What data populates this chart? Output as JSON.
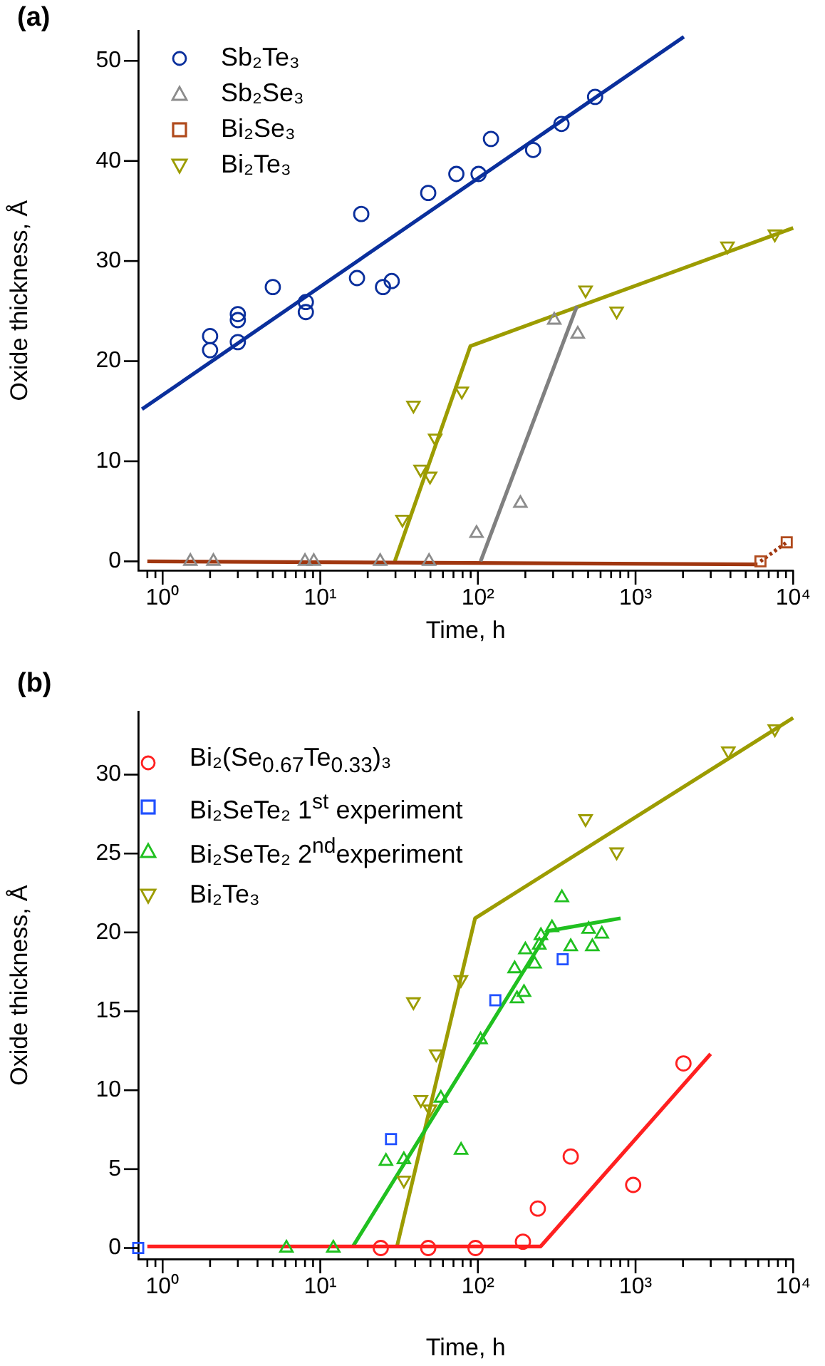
{
  "chart_data": [
    {
      "type": "scatter",
      "title": "(a)",
      "xlabel": "Time, h",
      "ylabel": "Oxide thickness, Å",
      "log": "x",
      "legend": "top left",
      "grid": false,
      "xlim": [
        0.7,
        10000
      ],
      "ylim": [
        -0.9,
        53
      ],
      "xticks": [
        {
          "value": 0.8,
          "label": null
        },
        {
          "value": 0.9,
          "label": null
        },
        {
          "value": 1,
          "label": "10⁰"
        },
        {
          "value": 2,
          "label": null
        },
        {
          "value": 3,
          "label": null
        },
        {
          "value": 4,
          "label": null
        },
        {
          "value": 5,
          "label": null
        },
        {
          "value": 6,
          "label": null
        },
        {
          "value": 7,
          "label": null
        },
        {
          "value": 8,
          "label": null
        },
        {
          "value": 9,
          "label": null
        },
        {
          "value": 10,
          "label": "10¹"
        },
        {
          "value": 20,
          "label": null
        },
        {
          "value": 30,
          "label": null
        },
        {
          "value": 40,
          "label": null
        },
        {
          "value": 50,
          "label": null
        },
        {
          "value": 60,
          "label": null
        },
        {
          "value": 70,
          "label": null
        },
        {
          "value": 80,
          "label": null
        },
        {
          "value": 90,
          "label": null
        },
        {
          "value": 100,
          "label": "10²"
        },
        {
          "value": 200,
          "label": null
        },
        {
          "value": 300,
          "label": null
        },
        {
          "value": 400,
          "label": null
        },
        {
          "value": 500,
          "label": null
        },
        {
          "value": 600,
          "label": null
        },
        {
          "value": 700,
          "label": null
        },
        {
          "value": 800,
          "label": null
        },
        {
          "value": 900,
          "label": null
        },
        {
          "value": 1000,
          "label": "10³"
        },
        {
          "value": 2000,
          "label": null
        },
        {
          "value": 3000,
          "label": null
        },
        {
          "value": 4000,
          "label": null
        },
        {
          "value": 5000,
          "label": null
        },
        {
          "value": 6000,
          "label": null
        },
        {
          "value": 7000,
          "label": null
        },
        {
          "value": 8000,
          "label": null
        },
        {
          "value": 9000,
          "label": null
        },
        {
          "value": 10000,
          "label": "10⁴"
        }
      ],
      "yticks": [
        0,
        10,
        20,
        30,
        40,
        50
      ],
      "series": [
        {
          "name": "Sb₂Te₃",
          "color": "#0a2f9c",
          "marker": "circle",
          "x": [
            2,
            2,
            3,
            3,
            3,
            5,
            8.1,
            8.1,
            17.1,
            18.2,
            25,
            28.4,
            48.4,
            73,
            101,
            121,
            224,
            339,
            554
          ],
          "values": [
            22.5,
            21.1,
            24.7,
            24.1,
            21.9,
            27.4,
            25.9,
            24.9,
            28.3,
            34.7,
            27.4,
            28.0,
            36.8,
            38.7,
            38.7,
            42.2,
            41.1,
            43.7,
            46.4
          ]
        },
        {
          "name": "Sb₂Se₃",
          "color": "#8c8c8c",
          "marker": "triangle",
          "x": [
            1.5,
            2.1,
            8,
            9.1,
            24,
            49,
            98,
            186,
            305,
            430
          ],
          "values": [
            0,
            0,
            0,
            0,
            0,
            0,
            2.8,
            5.8,
            24.1,
            22.7
          ]
        },
        {
          "name": "Bi₂Se₃",
          "color": "#b04a1c",
          "marker": "square",
          "x": [
            6200,
            9100
          ],
          "values": [
            0,
            1.9
          ]
        },
        {
          "name": "Bi₂Te₃",
          "color": "#9c9c00",
          "marker": "triangle-down",
          "x": [
            33.2,
            39,
            43.3,
            49.7,
            53.6,
            79,
            482,
            759,
            3830,
            7650
          ],
          "values": [
            4.2,
            15.6,
            9.2,
            8.5,
            12.3,
            17.0,
            27.1,
            25.0,
            31.5,
            32.7
          ]
        },
        {
          "type": "line",
          "color": "#0a2f9c",
          "x": [
            0.74,
            2025
          ],
          "values": [
            15.2,
            52.4
          ]
        },
        {
          "type": "line",
          "color": "#808080",
          "x": [
            104,
            425
          ],
          "values": [
            0,
            25.5
          ]
        },
        {
          "type": "line",
          "color": "#a0360f",
          "x": [
            0.8,
            5940
          ],
          "values": [
            0,
            -0.3
          ]
        },
        {
          "type": "line",
          "color": "#a0360f",
          "line_style": "dotted",
          "x": [
            6200,
            9100
          ],
          "values": [
            0,
            1.9
          ]
        },
        {
          "type": "line",
          "color": "#9c9c00",
          "x": [
            29.7,
            89.6,
            10000
          ],
          "values": [
            0,
            21.5,
            33.3
          ]
        }
      ]
    },
    {
      "type": "scatter",
      "title": "(b)",
      "xlabel": "Time, h",
      "ylabel": "Oxide thickness, Å",
      "log": "x",
      "legend": "top left",
      "grid": false,
      "xlim": [
        0.7,
        10000
      ],
      "ylim": [
        -0.7,
        34
      ],
      "xticks": [
        {
          "value": 0.8,
          "label": null
        },
        {
          "value": 0.9,
          "label": null
        },
        {
          "value": 1,
          "label": "10⁰"
        },
        {
          "value": 2,
          "label": null
        },
        {
          "value": 3,
          "label": null
        },
        {
          "value": 4,
          "label": null
        },
        {
          "value": 5,
          "label": null
        },
        {
          "value": 6,
          "label": null
        },
        {
          "value": 7,
          "label": null
        },
        {
          "value": 8,
          "label": null
        },
        {
          "value": 9,
          "label": null
        },
        {
          "value": 10,
          "label": "10¹"
        },
        {
          "value": 20,
          "label": null
        },
        {
          "value": 30,
          "label": null
        },
        {
          "value": 40,
          "label": null
        },
        {
          "value": 50,
          "label": null
        },
        {
          "value": 60,
          "label": null
        },
        {
          "value": 70,
          "label": null
        },
        {
          "value": 80,
          "label": null
        },
        {
          "value": 90,
          "label": null
        },
        {
          "value": 100,
          "label": "10²"
        },
        {
          "value": 200,
          "label": null
        },
        {
          "value": 300,
          "label": null
        },
        {
          "value": 400,
          "label": null
        },
        {
          "value": 500,
          "label": null
        },
        {
          "value": 600,
          "label": null
        },
        {
          "value": 700,
          "label": null
        },
        {
          "value": 800,
          "label": null
        },
        {
          "value": 900,
          "label": null
        },
        {
          "value": 1000,
          "label": "10³"
        },
        {
          "value": 2000,
          "label": null
        },
        {
          "value": 3000,
          "label": null
        },
        {
          "value": 4000,
          "label": null
        },
        {
          "value": 5000,
          "label": null
        },
        {
          "value": 6000,
          "label": null
        },
        {
          "value": 7000,
          "label": null
        },
        {
          "value": 8000,
          "label": null
        },
        {
          "value": 9000,
          "label": null
        },
        {
          "value": 10000,
          "label": "10⁴"
        }
      ],
      "yticks": [
        0,
        5,
        10,
        15,
        20,
        25,
        30
      ],
      "series": [
        {
          "name": "Bi₂(Se$_{0.67}$Te$_{0.33}$)₃",
          "color": "#ff2020",
          "marker": "circle",
          "x": [
            24.2,
            48.4,
            96.6,
            193,
            240,
            388,
            966,
            2014
          ],
          "values": [
            0,
            0,
            0,
            0.4,
            2.5,
            5.8,
            4.0,
            11.7
          ]
        },
        {
          "name": "Bi₂SeTe₂ 1$^{st}$ experiment",
          "color": "#2050ff",
          "marker": "square",
          "x": [
            0.7,
            28.1,
            129,
            345
          ],
          "values": [
            0,
            6.9,
            15.7,
            18.3
          ]
        },
        {
          "name": "Bi₂SeTe₂ 2$^{nd}$experiment",
          "color": "#20c020",
          "marker": "triangle",
          "x": [
            6.1,
            12.1,
            26.1,
            33.9,
            58.2,
            78.2,
            104,
            171,
            177,
            196,
            200,
            229,
            245,
            251,
            295,
            341,
            388,
            504,
            532,
            611
          ],
          "values": [
            0,
            0,
            5.5,
            5.6,
            9.5,
            6.2,
            13.2,
            17.7,
            15.8,
            16.2,
            18.9,
            18.0,
            19.2,
            19.8,
            20.3,
            22.2,
            19.1,
            20.2,
            19.1,
            19.9
          ]
        },
        {
          "name": "Bi₂Te₃",
          "color": "#9c9c00",
          "marker": "triangle-down",
          "x": [
            33.9,
            39,
            43.5,
            49.7,
            54.4,
            78,
            482,
            759,
            3880,
            7650
          ],
          "values": [
            4.3,
            15.6,
            9.4,
            8.8,
            12.3,
            17.0,
            27.2,
            25.1,
            31.5,
            32.9
          ]
        },
        {
          "type": "line",
          "color": "#ff2020",
          "x": [
            0.8,
            250,
            2993
          ],
          "values": [
            0.1,
            0.1,
            12.3
          ]
        },
        {
          "type": "line",
          "color": "#20c020",
          "x": [
            16.1,
            281,
            804
          ],
          "values": [
            0.1,
            20.1,
            20.9
          ]
        },
        {
          "type": "line",
          "color": "#9c9c00",
          "x": [
            30.5,
            96,
            10000
          ],
          "values": [
            0,
            20.9,
            33.6
          ]
        }
      ]
    }
  ]
}
